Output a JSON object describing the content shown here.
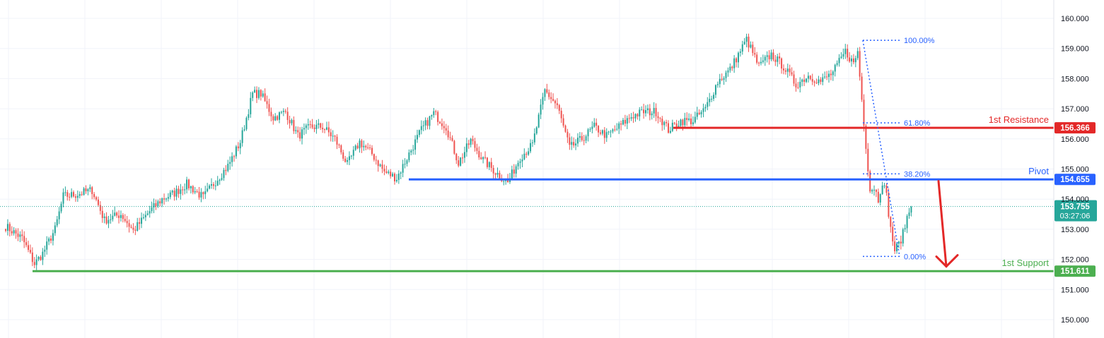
{
  "chart_data": {
    "type": "candlestick",
    "y_axis": {
      "ticks": [
        "160.000",
        "159.000",
        "158.000",
        "157.000",
        "156.000",
        "155.000",
        "154.000",
        "153.000",
        "152.000",
        "151.000",
        "150.000"
      ],
      "tick_values": [
        160,
        159,
        158,
        157,
        156,
        155,
        154,
        153,
        152,
        151,
        150
      ],
      "ylim": [
        149.6,
        160.3
      ],
      "position": "right"
    },
    "grid": true,
    "levels": [
      {
        "name": "1st Resistance",
        "value": 156.366,
        "value_label": "156.366",
        "color": "#e32828"
      },
      {
        "name": "Pivot",
        "value": 154.655,
        "value_label": "154.655",
        "color": "#2962ff"
      },
      {
        "name": "1st Support",
        "value": 151.611,
        "value_label": "151.611",
        "color": "#4caf50"
      }
    ],
    "current_price": {
      "value": 153.755,
      "label": "153.755",
      "countdown": "03:27:06",
      "color": "#26a69a"
    },
    "fibonacci": {
      "high": 159.27,
      "low": 152.1,
      "levels": [
        {
          "ratio": 1.0,
          "label": "100.00%"
        },
        {
          "ratio": 0.618,
          "label": "61.80%"
        },
        {
          "ratio": 0.382,
          "label": "38.20%"
        },
        {
          "ratio": 0.0,
          "label": "0.00%"
        }
      ]
    },
    "forecast_arrow": {
      "direction": "down",
      "from": 154.6,
      "to": 152.0,
      "color": "#e32828"
    },
    "colors": {
      "up": "#26a69a",
      "down": "#ef5350",
      "grid": "#f0f3fa"
    },
    "anchors": [
      {
        "i": 0,
        "p": 153.1
      },
      {
        "i": 8,
        "p": 152.7
      },
      {
        "i": 14,
        "p": 151.85
      },
      {
        "i": 18,
        "p": 152.2
      },
      {
        "i": 24,
        "p": 153.0
      },
      {
        "i": 28,
        "p": 154.1
      },
      {
        "i": 34,
        "p": 154.15
      },
      {
        "i": 42,
        "p": 154.3
      },
      {
        "i": 48,
        "p": 153.3
      },
      {
        "i": 56,
        "p": 153.5
      },
      {
        "i": 62,
        "p": 152.95
      },
      {
        "i": 70,
        "p": 153.6
      },
      {
        "i": 76,
        "p": 154.0
      },
      {
        "i": 82,
        "p": 154.2
      },
      {
        "i": 88,
        "p": 154.5
      },
      {
        "i": 96,
        "p": 154.05
      },
      {
        "i": 102,
        "p": 154.6
      },
      {
        "i": 108,
        "p": 155.1
      },
      {
        "i": 114,
        "p": 155.9
      },
      {
        "i": 120,
        "p": 157.5
      },
      {
        "i": 124,
        "p": 157.5
      },
      {
        "i": 130,
        "p": 156.7
      },
      {
        "i": 136,
        "p": 156.9
      },
      {
        "i": 142,
        "p": 156.1
      },
      {
        "i": 148,
        "p": 156.4
      },
      {
        "i": 154,
        "p": 156.4
      },
      {
        "i": 160,
        "p": 156.0
      },
      {
        "i": 166,
        "p": 155.15
      },
      {
        "i": 172,
        "p": 155.9
      },
      {
        "i": 178,
        "p": 155.5
      },
      {
        "i": 184,
        "p": 154.9
      },
      {
        "i": 190,
        "p": 154.7
      },
      {
        "i": 196,
        "p": 155.5
      },
      {
        "i": 202,
        "p": 156.3
      },
      {
        "i": 208,
        "p": 156.85
      },
      {
        "i": 214,
        "p": 156.4
      },
      {
        "i": 220,
        "p": 155.2
      },
      {
        "i": 226,
        "p": 155.95
      },
      {
        "i": 232,
        "p": 155.3
      },
      {
        "i": 238,
        "p": 154.9
      },
      {
        "i": 244,
        "p": 154.55
      },
      {
        "i": 250,
        "p": 155.4
      },
      {
        "i": 256,
        "p": 155.8
      },
      {
        "i": 262,
        "p": 157.6
      },
      {
        "i": 268,
        "p": 157.1
      },
      {
        "i": 274,
        "p": 155.7
      },
      {
        "i": 280,
        "p": 156.0
      },
      {
        "i": 286,
        "p": 156.4
      },
      {
        "i": 292,
        "p": 156.1
      },
      {
        "i": 298,
        "p": 156.4
      },
      {
        "i": 304,
        "p": 156.75
      },
      {
        "i": 310,
        "p": 156.9
      },
      {
        "i": 316,
        "p": 156.9
      },
      {
        "i": 322,
        "p": 156.3
      },
      {
        "i": 328,
        "p": 156.6
      },
      {
        "i": 334,
        "p": 156.6
      },
      {
        "i": 340,
        "p": 157.0
      },
      {
        "i": 346,
        "p": 157.9
      },
      {
        "i": 352,
        "p": 158.3
      },
      {
        "i": 360,
        "p": 159.3
      },
      {
        "i": 366,
        "p": 158.4
      },
      {
        "i": 372,
        "p": 158.8
      },
      {
        "i": 378,
        "p": 158.4
      },
      {
        "i": 384,
        "p": 157.8
      },
      {
        "i": 390,
        "p": 158.1
      },
      {
        "i": 396,
        "p": 157.9
      },
      {
        "i": 402,
        "p": 158.2
      },
      {
        "i": 408,
        "p": 158.9
      },
      {
        "i": 412,
        "p": 158.5
      },
      {
        "i": 414,
        "p": 158.9
      },
      {
        "i": 416,
        "p": 157.3
      },
      {
        "i": 418,
        "p": 155.8
      },
      {
        "i": 420,
        "p": 154.3
      },
      {
        "i": 422,
        "p": 154.4
      },
      {
        "i": 424,
        "p": 154.0
      },
      {
        "i": 426,
        "p": 154.6
      },
      {
        "i": 428,
        "p": 154.1
      },
      {
        "i": 430,
        "p": 153.0
      },
      {
        "i": 432,
        "p": 152.3
      },
      {
        "i": 434,
        "p": 152.5
      },
      {
        "i": 436,
        "p": 152.85
      },
      {
        "i": 438,
        "p": 153.4
      },
      {
        "i": 440,
        "p": 153.75
      }
    ]
  }
}
